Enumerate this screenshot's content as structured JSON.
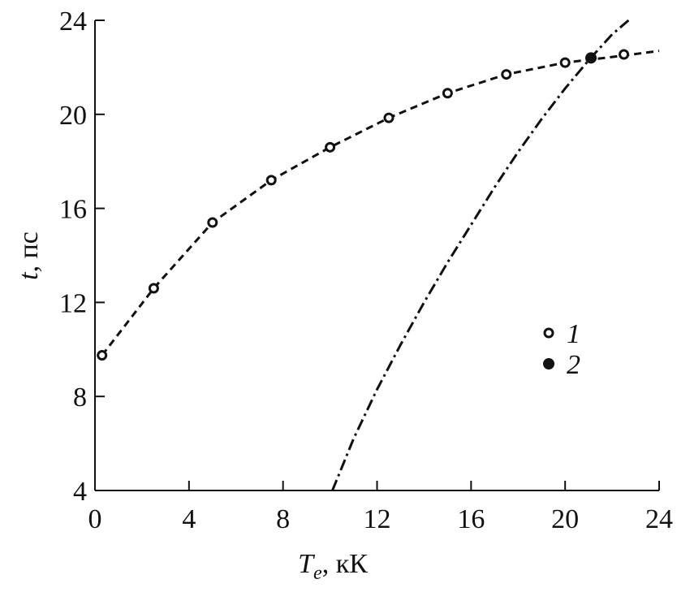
{
  "chart_data": {
    "type": "scatter",
    "xlabel": {
      "symbol": "T",
      "subscript": "e",
      "unit": ", кК"
    },
    "ylabel": {
      "symbol": "t",
      "unit": ", пс"
    },
    "xlim": [
      0,
      24
    ],
    "ylim": [
      4,
      24
    ],
    "xticks": [
      0,
      4,
      8,
      12,
      16,
      20,
      24
    ],
    "yticks": [
      4,
      8,
      12,
      16,
      20,
      24
    ],
    "color": "#111111",
    "series": [
      {
        "name": "1",
        "marker": "open",
        "x": [
          0.3,
          2.5,
          5,
          7.5,
          10,
          12.5,
          15,
          17.5,
          20,
          22.5
        ],
        "values": [
          9.75,
          12.6,
          15.4,
          17.2,
          18.6,
          19.85,
          20.9,
          21.7,
          22.2,
          22.55
        ]
      },
      {
        "name": "2",
        "marker": "filled",
        "x": [
          21.1
        ],
        "values": [
          22.4
        ]
      },
      {
        "line": "dashed",
        "x": [
          0.3,
          2.5,
          5,
          7.5,
          10,
          12.5,
          15,
          17.5,
          20,
          22.5,
          24
        ],
        "values": [
          9.75,
          12.6,
          15.4,
          17.2,
          18.6,
          19.85,
          20.9,
          21.7,
          22.2,
          22.5,
          22.7
        ]
      },
      {
        "line": "dashdot",
        "x": [
          10.1,
          11,
          12,
          13,
          14,
          15,
          16,
          17,
          18,
          19,
          20,
          21,
          22,
          22.7
        ],
        "values": [
          4,
          6.2,
          8.3,
          10.2,
          12,
          13.7,
          15.3,
          16.9,
          18.4,
          19.8,
          21.1,
          22.3,
          23.4,
          24
        ]
      }
    ]
  }
}
